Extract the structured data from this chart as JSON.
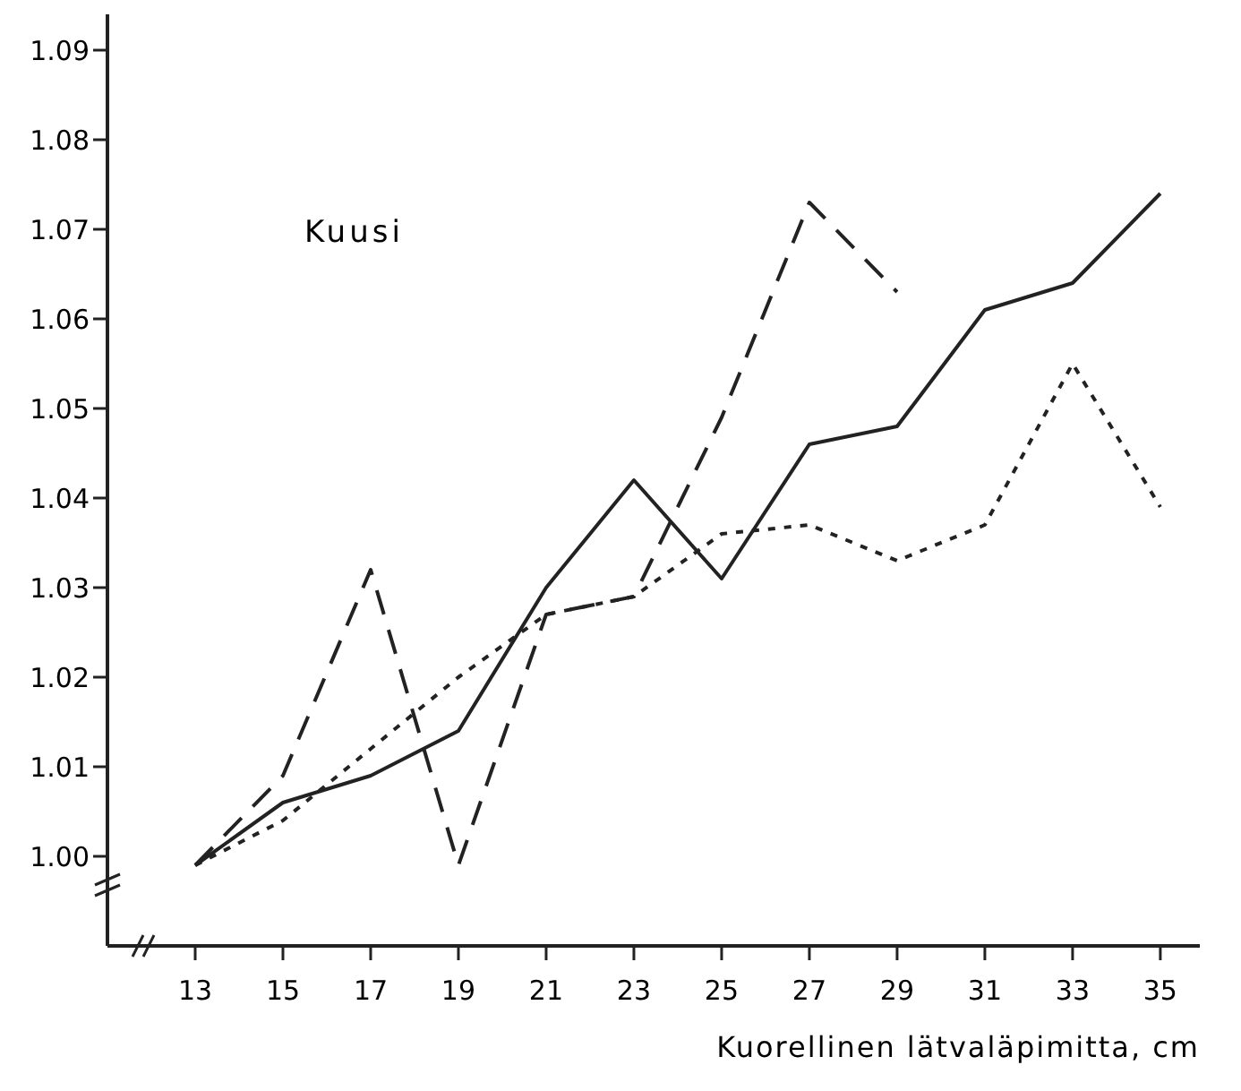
{
  "chart_data": {
    "type": "line",
    "xlabel": "Kuorellinen lätvaläpimitta, cm",
    "annotations": [
      "Kuusi"
    ],
    "x": [
      13,
      15,
      17,
      19,
      21,
      23,
      25,
      27,
      29,
      31,
      33,
      35
    ],
    "series": [
      {
        "color": "#222222",
        "line_style": "solid",
        "values": [
          0.999,
          1.006,
          1.009,
          1.014,
          1.03,
          1.042,
          1.031,
          1.046,
          1.048,
          1.061,
          1.064,
          1.074
        ]
      },
      {
        "color": "#222222",
        "line_style": "dashed",
        "values": [
          0.999,
          1.009,
          1.032,
          0.999,
          1.027,
          1.029,
          1.049,
          1.073,
          1.063,
          null,
          null,
          null
        ]
      },
      {
        "color": "#222222",
        "line_style": "dotted",
        "values": [
          0.999,
          1.004,
          1.012,
          1.02,
          1.027,
          1.029,
          1.036,
          1.037,
          1.033,
          1.037,
          1.055,
          1.039
        ]
      }
    ],
    "xlim": [
      11,
      35.9
    ],
    "ylim": [
      0.99,
      1.094
    ],
    "xticks": [
      13,
      15,
      17,
      19,
      21,
      23,
      25,
      27,
      29,
      31,
      33,
      35
    ],
    "yticks": [
      {
        "value": 1.0,
        "label": "1.00"
      },
      {
        "value": 1.01,
        "label": "1.01"
      },
      {
        "value": 1.02,
        "label": "1.02"
      },
      {
        "value": 1.03,
        "label": "1.03"
      },
      {
        "value": 1.04,
        "label": "1.04"
      },
      {
        "value": 1.05,
        "label": "1.05"
      },
      {
        "value": 1.06,
        "label": "1.06"
      },
      {
        "value": 1.07,
        "label": "1.07"
      },
      {
        "value": 1.08,
        "label": "1.08"
      },
      {
        "value": 1.09,
        "label": "1.09"
      }
    ],
    "marker": "none"
  }
}
